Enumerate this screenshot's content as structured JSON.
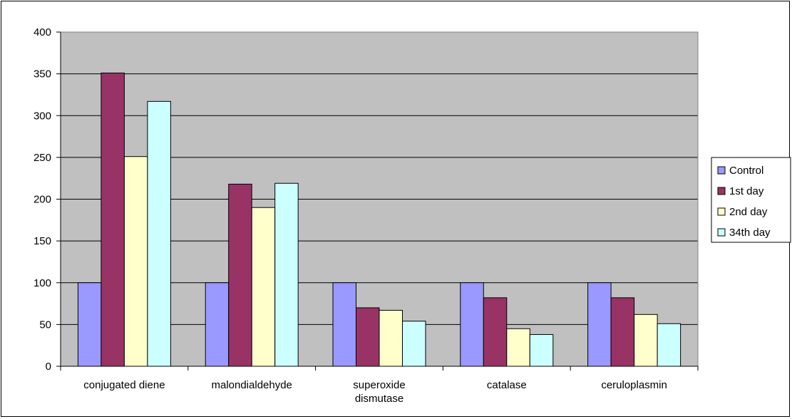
{
  "chart_data": {
    "type": "bar",
    "categories": [
      [
        "conjugated diene"
      ],
      [
        "malondialdehyde"
      ],
      [
        "superoxide",
        "dismutase"
      ],
      [
        "catalase"
      ],
      [
        "ceruloplasmin"
      ]
    ],
    "series": [
      {
        "name": "Control",
        "color": "#9999ff",
        "values": [
          100,
          100,
          100,
          100,
          100
        ]
      },
      {
        "name": "1st day",
        "color": "#993366",
        "values": [
          351,
          218,
          70,
          82,
          82
        ]
      },
      {
        "name": "2nd day",
        "color": "#ffffcc",
        "values": [
          251,
          190,
          67,
          45,
          62
        ]
      },
      {
        "name": "34th day",
        "color": "#ccffff",
        "values": [
          317,
          219,
          54,
          38,
          51
        ]
      }
    ],
    "ylim": [
      0,
      400
    ],
    "yticks": [
      0,
      50,
      100,
      150,
      200,
      250,
      300,
      350,
      400
    ],
    "grid": true,
    "legend": "right",
    "plot_background": "#c0c0c0"
  }
}
